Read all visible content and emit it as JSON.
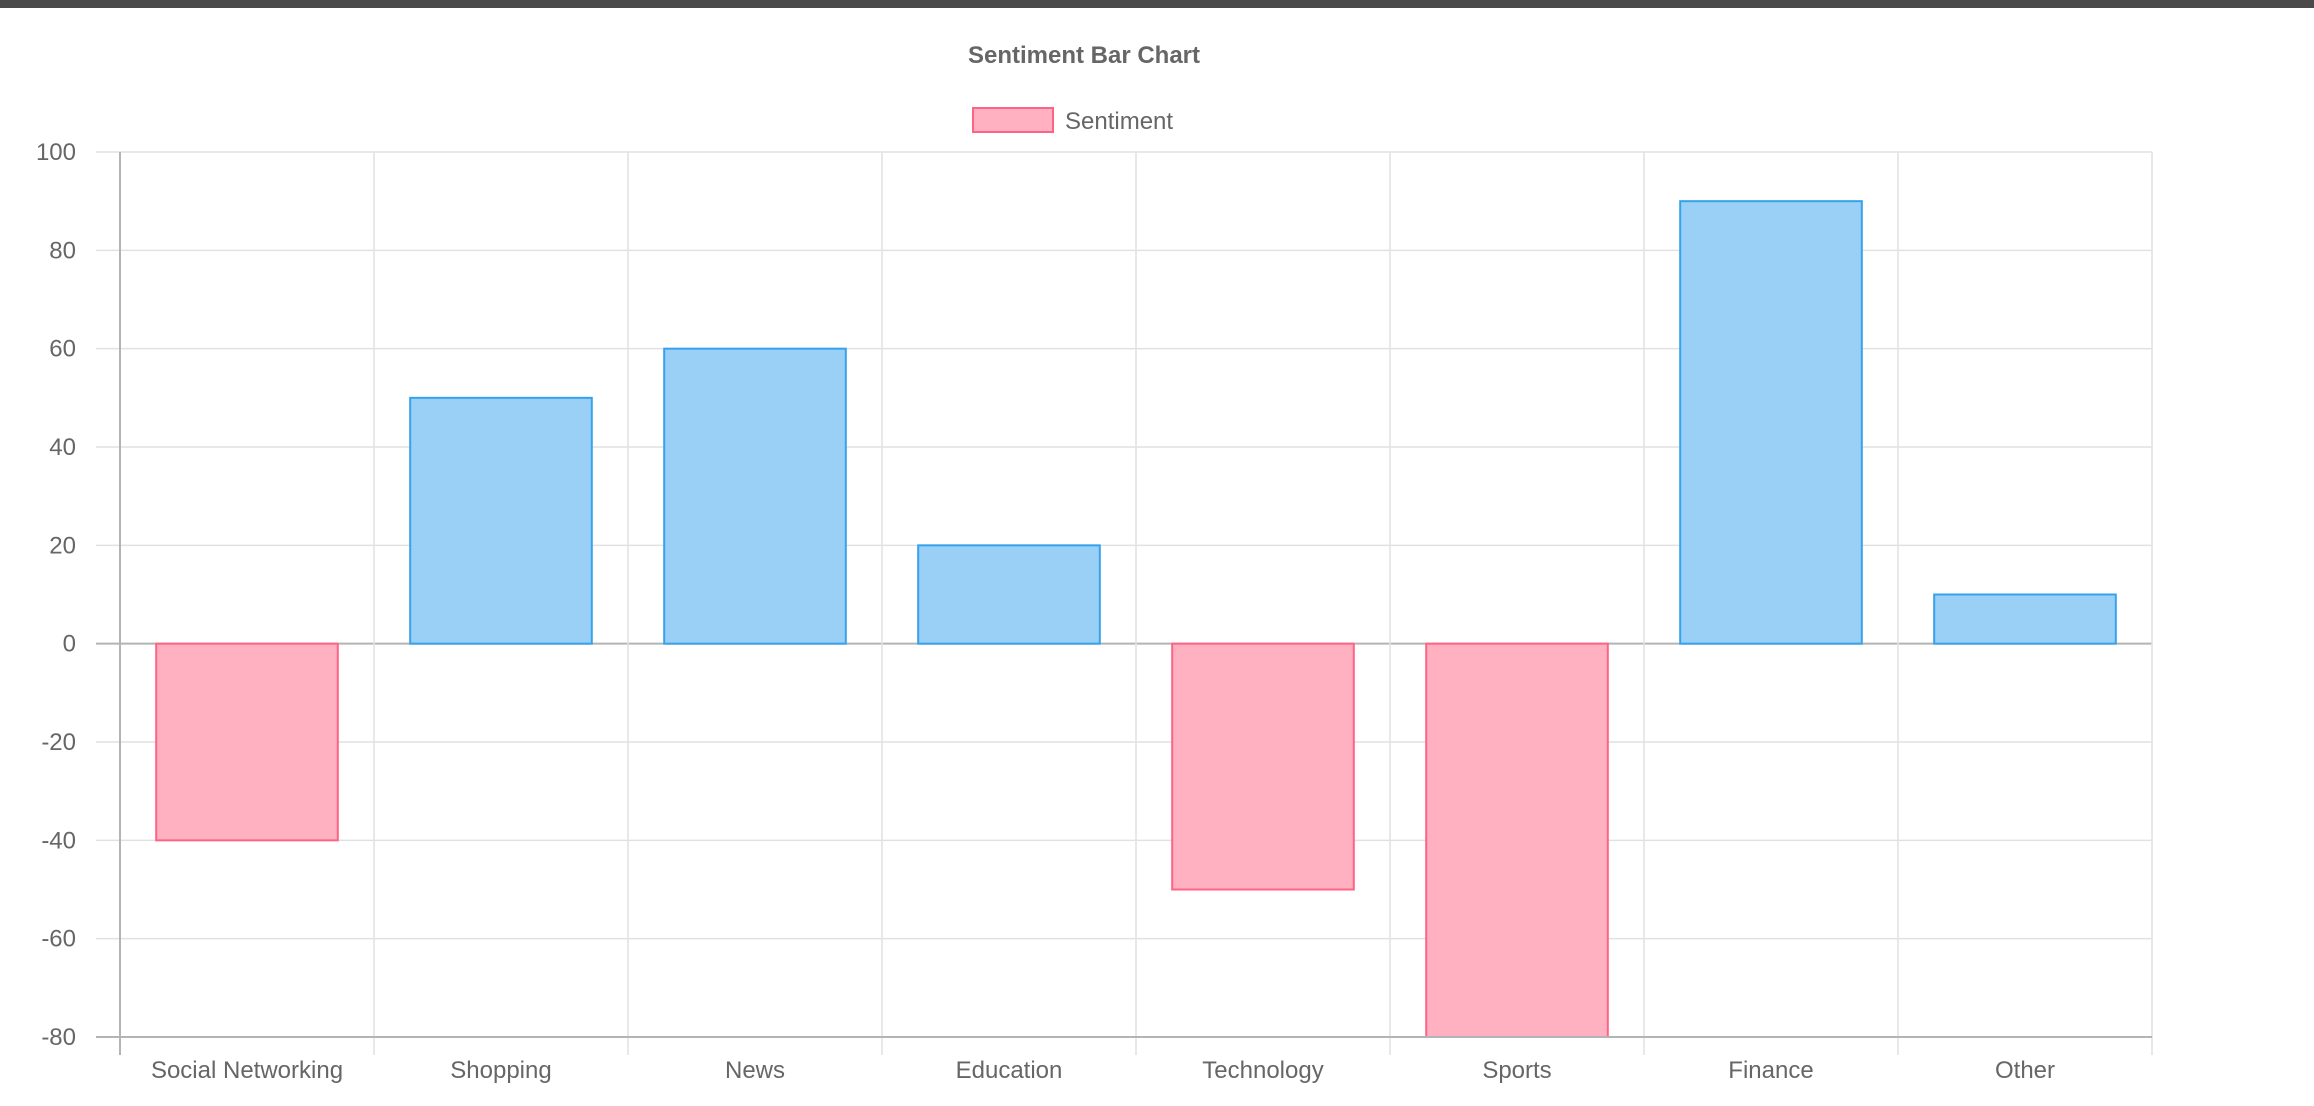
{
  "chart_data": {
    "type": "bar",
    "title": "Sentiment Bar Chart",
    "legend": {
      "position": "top",
      "entries": [
        {
          "label": "Sentiment",
          "fill": "#ffb1c1",
          "border": "#ff6384"
        }
      ]
    },
    "categories": [
      "Social Networking",
      "Shopping",
      "News",
      "Education",
      "Technology",
      "Sports",
      "Finance",
      "Other"
    ],
    "series": [
      {
        "name": "Sentiment",
        "values": [
          -40,
          50,
          60,
          20,
          -50,
          -80,
          90,
          10
        ]
      }
    ],
    "ylim": [
      -80,
      100
    ],
    "yticks": [
      100,
      80,
      60,
      40,
      20,
      0,
      -20,
      -40,
      -60,
      -80
    ],
    "xlabel": "",
    "ylabel": "",
    "grid": true,
    "colors": {
      "positive_fill": "#9ad0f5",
      "positive_border": "#36a2eb",
      "negative_fill": "#ffb1c1",
      "negative_border": "#ff6384",
      "grid": "#e1e1e1",
      "axis": "#b4b4b4",
      "text": "#666666"
    }
  }
}
